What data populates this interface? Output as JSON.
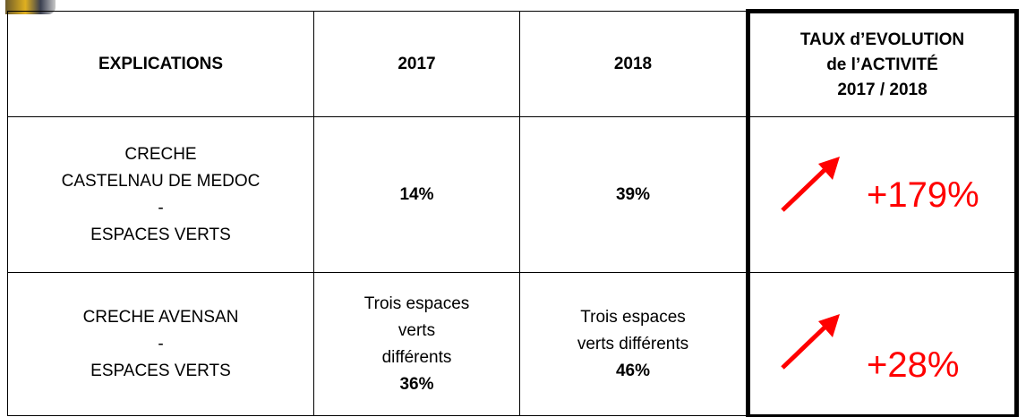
{
  "table": {
    "header": [
      [
        "EXPLICATIONS"
      ],
      [
        "2017"
      ],
      [
        "2018"
      ],
      [
        "TAUX d’EVOLUTION",
        "de l’ACTIVITÉ",
        "2017 / 2018"
      ]
    ],
    "rows": [
      [
        {
          "lines": [
            "CRECHE",
            "CASTELNAU DE MEDOC",
            "-",
            "ESPACES VERTS"
          ]
        },
        {
          "value": "14%"
        },
        {
          "value": "39%"
        },
        {
          "rate": "+179%"
        }
      ],
      [
        {
          "lines": [
            "CRECHE AVENSAN",
            "-",
            "ESPACES VERTS"
          ]
        },
        {
          "lines": [
            "Trois espaces",
            "verts",
            "différents"
          ],
          "value": "36%"
        },
        {
          "lines": [
            "Trois espaces",
            "verts différents"
          ],
          "value": "46%"
        },
        {
          "rate": "+28%"
        }
      ]
    ]
  }
}
